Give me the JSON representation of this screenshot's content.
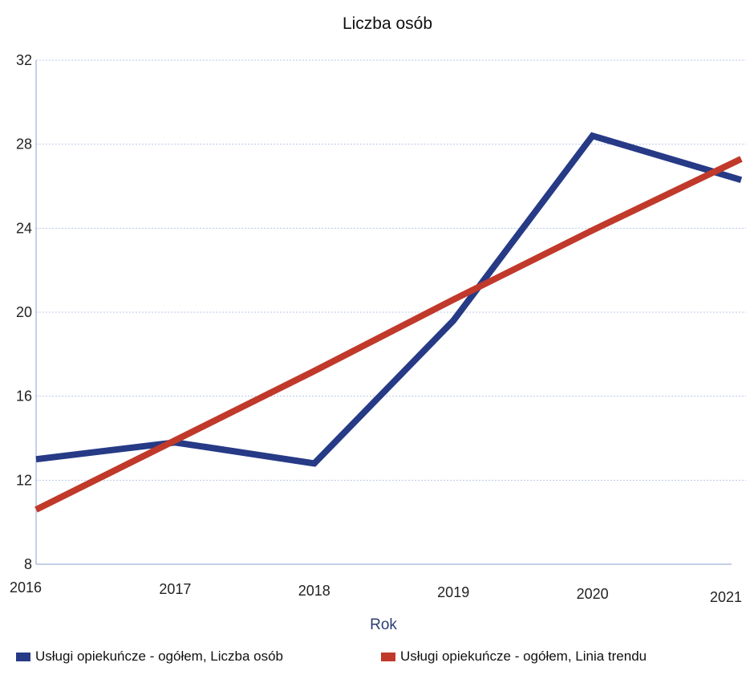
{
  "chart_data": {
    "type": "line",
    "title": "Liczba osób",
    "xlabel": "Rok",
    "ylabel": "",
    "x": [
      "2016",
      "2017",
      "2018",
      "2019",
      "2020",
      "2021"
    ],
    "y_ticks": [
      "8",
      "12",
      "16",
      "20",
      "24",
      "28",
      "32"
    ],
    "ylim": [
      8,
      32
    ],
    "grid": true,
    "legend_position": "bottom",
    "series": [
      {
        "name": "Usługi opiekuńcze - ogółem, Liczba osób",
        "color": "#263a86",
        "values": [
          13.0,
          13.8,
          12.8,
          19.6,
          28.4,
          26.3
        ]
      },
      {
        "name": "Usługi opiekuńcze - ogółem, Linia trendu",
        "color": "#c0392b",
        "values": [
          10.6,
          13.9,
          17.2,
          20.6,
          23.9,
          27.3
        ]
      }
    ]
  }
}
